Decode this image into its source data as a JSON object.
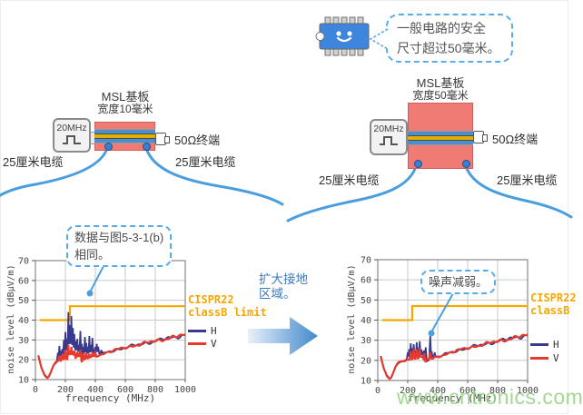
{
  "watermark": {
    "text": "www.cntronics.com",
    "color": "#8ccf78"
  },
  "colors": {
    "board": "#f07a74",
    "board_border": "#cf5f5c",
    "trace_blue": "#4a8fd0",
    "trace_yellow": "#e2af00",
    "cable": "#4a9ede",
    "via": "#3b7fd4",
    "chip": "#3d85dd",
    "limit": "#f7a600",
    "series_h": "#383a8e",
    "series_v": "#e8392e",
    "leader": "#4da0e0",
    "transition_text": "#3b79bb"
  },
  "diagram_left": {
    "title": "MSL基板",
    "subtitle": "宽度10毫米",
    "generator": "20MHz",
    "terminator": "50Ω终端",
    "cable_left": "25厘米电缆",
    "cable_right": "25厘米电缆"
  },
  "diagram_right": {
    "title": "MSL基板",
    "subtitle": "宽度50毫米",
    "generator": "20MHz",
    "terminator": "50Ω终端",
    "cable_left": "25厘米电缆",
    "cable_right": "25厘米电缆",
    "chip_note_line1": "一般电路的安全",
    "chip_note_line2": "尺寸超过50毫米。"
  },
  "transition": {
    "line1": "扩大接地",
    "line2": "区域。"
  },
  "chart_data": [
    {
      "id": "left",
      "type": "line",
      "title": "",
      "xlabel": "frequency (MHz)",
      "ylabel": "noise level (dBμV/m)",
      "xlim": [
        0,
        1000
      ],
      "ylim": [
        10,
        70
      ],
      "xticks": [
        0,
        200,
        400,
        600,
        800,
        1000
      ],
      "yticks": [
        10,
        20,
        30,
        40,
        50,
        60,
        70
      ],
      "grid": true,
      "legend_limit": [
        "CISPR22",
        "classB limit"
      ],
      "legend_series": [
        "H",
        "V"
      ],
      "callout": {
        "lines": [
          "数据与图5-3-1(b)",
          "相同。"
        ]
      },
      "limit_line": {
        "name": "CISPR22 classB limit",
        "points": [
          [
            30,
            40
          ],
          [
            230,
            40
          ],
          [
            230,
            47
          ],
          [
            1000,
            47
          ]
        ]
      },
      "baseline": [
        [
          20,
          22
        ],
        [
          30,
          19
        ],
        [
          40,
          16
        ],
        [
          60,
          12.5
        ],
        [
          80,
          11
        ],
        [
          90,
          11.5
        ],
        [
          100,
          13
        ],
        [
          110,
          15
        ],
        [
          120,
          17
        ],
        [
          130,
          18.2
        ],
        [
          140,
          19
        ],
        [
          160,
          19.6
        ],
        [
          180,
          19.8
        ],
        [
          200,
          20.2
        ],
        [
          220,
          20.6
        ],
        [
          240,
          21
        ],
        [
          260,
          21.2
        ],
        [
          280,
          21.4
        ],
        [
          300,
          21.5
        ],
        [
          308,
          19.2
        ],
        [
          330,
          20.2
        ],
        [
          360,
          20.8
        ],
        [
          400,
          21.8
        ],
        [
          450,
          23
        ],
        [
          500,
          24.2
        ],
        [
          550,
          25.2
        ],
        [
          600,
          26.2
        ],
        [
          650,
          27
        ],
        [
          700,
          27.8
        ],
        [
          750,
          28.6
        ],
        [
          800,
          29.5
        ],
        [
          850,
          30.3
        ],
        [
          900,
          31
        ],
        [
          950,
          31.8
        ],
        [
          1000,
          32.5
        ]
      ],
      "series": [
        {
          "name": "H",
          "spikes": [
            [
              150,
              23.5
            ],
            [
              160,
              27
            ],
            [
              170,
              24.5
            ],
            [
              180,
              25.5
            ],
            [
              190,
              30
            ],
            [
              200,
              34
            ],
            [
              210,
              30.5
            ],
            [
              220,
              44
            ],
            [
              230,
              37.5
            ],
            [
              240,
              42
            ],
            [
              250,
              36
            ],
            [
              260,
              33
            ],
            [
              270,
              29.5
            ],
            [
              280,
              30.5
            ],
            [
              290,
              27.5
            ],
            [
              300,
              34.5
            ],
            [
              310,
              28
            ],
            [
              320,
              26.5
            ],
            [
              330,
              31.5
            ],
            [
              340,
              28.5
            ],
            [
              350,
              26.5
            ],
            [
              360,
              32
            ],
            [
              370,
              27.5
            ],
            [
              380,
              31
            ],
            [
              390,
              25.5
            ],
            [
              400,
              26.5
            ],
            [
              410,
              28
            ],
            [
              420,
              26.5
            ],
            [
              440,
              25
            ]
          ]
        },
        {
          "name": "V",
          "spikes": [
            [
              160,
              22
            ],
            [
              180,
              23
            ],
            [
              200,
              25
            ],
            [
              220,
              27.5
            ],
            [
              230,
              24.5
            ],
            [
              240,
              26.5
            ],
            [
              250,
              24.5
            ],
            [
              260,
              24.5
            ],
            [
              280,
              24
            ],
            [
              300,
              25
            ],
            [
              320,
              23.5
            ],
            [
              340,
              23.5
            ],
            [
              360,
              23
            ],
            [
              380,
              23.5
            ],
            [
              400,
              23.5
            ]
          ]
        }
      ]
    },
    {
      "id": "right",
      "type": "line",
      "title": "",
      "xlabel": "frequency (MHz)",
      "ylabel": "noise level (dBμV/m)",
      "xlim": [
        0,
        1000
      ],
      "ylim": [
        10,
        70
      ],
      "xticks": [
        0,
        200,
        400,
        600,
        800,
        1000
      ],
      "yticks": [
        10,
        20,
        30,
        40,
        50,
        60,
        70
      ],
      "grid": true,
      "legend_limit": [
        "CISPR22",
        "classB"
      ],
      "legend_series": [
        "H",
        "V"
      ],
      "callout": {
        "lines": [
          "噪声减弱。"
        ]
      },
      "limit_line": {
        "name": "CISPR22 classB limit",
        "points": [
          [
            30,
            40
          ],
          [
            230,
            40
          ],
          [
            230,
            47
          ],
          [
            1000,
            47
          ]
        ]
      },
      "baseline": [
        [
          20,
          22
        ],
        [
          30,
          19
        ],
        [
          40,
          16
        ],
        [
          60,
          12.5
        ],
        [
          80,
          11
        ],
        [
          90,
          11.5
        ],
        [
          100,
          13
        ],
        [
          110,
          15
        ],
        [
          120,
          17
        ],
        [
          130,
          18.2
        ],
        [
          140,
          19
        ],
        [
          160,
          19.6
        ],
        [
          180,
          19.8
        ],
        [
          200,
          20.2
        ],
        [
          220,
          20.6
        ],
        [
          240,
          21
        ],
        [
          260,
          21.2
        ],
        [
          280,
          21.4
        ],
        [
          300,
          21.5
        ],
        [
          308,
          19.2
        ],
        [
          330,
          20.2
        ],
        [
          360,
          20.8
        ],
        [
          400,
          21.8
        ],
        [
          450,
          23
        ],
        [
          500,
          24.2
        ],
        [
          550,
          25.2
        ],
        [
          600,
          26.2
        ],
        [
          650,
          27
        ],
        [
          700,
          27.8
        ],
        [
          750,
          28.6
        ],
        [
          800,
          29.5
        ],
        [
          850,
          30.3
        ],
        [
          900,
          31
        ],
        [
          950,
          31.8
        ],
        [
          1000,
          32.5
        ]
      ],
      "series": [
        {
          "name": "H",
          "spikes": [
            [
              200,
              24
            ],
            [
              210,
              25.5
            ],
            [
              220,
              28.5
            ],
            [
              230,
              26
            ],
            [
              240,
              28
            ],
            [
              250,
              25
            ],
            [
              260,
              29
            ],
            [
              270,
              26
            ],
            [
              280,
              29.5
            ],
            [
              290,
              25.5
            ],
            [
              300,
              24.5
            ],
            [
              310,
              25
            ],
            [
              320,
              26.5
            ],
            [
              350,
              32
            ],
            [
              360,
              24.5
            ],
            [
              380,
              24
            ]
          ]
        },
        {
          "name": "V",
          "spikes": [
            [
              220,
              24.5
            ],
            [
              240,
              25.5
            ],
            [
              260,
              25.5
            ],
            [
              280,
              26
            ],
            [
              310,
              23.5
            ],
            [
              350,
              24
            ]
          ]
        }
      ]
    }
  ]
}
